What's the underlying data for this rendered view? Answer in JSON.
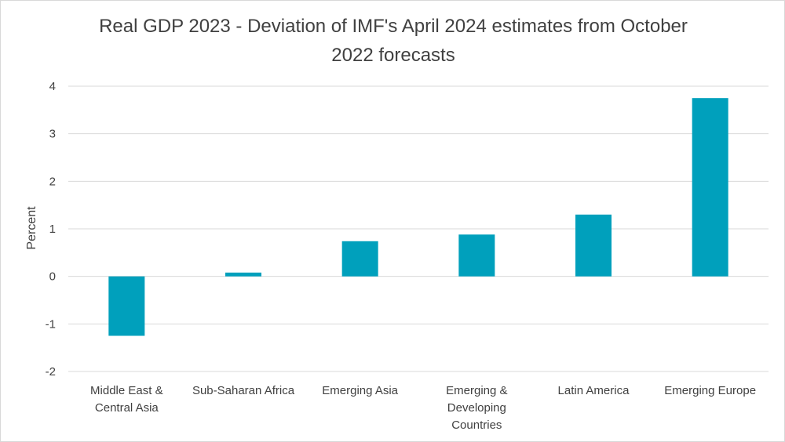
{
  "chart_data": {
    "type": "bar",
    "title_lines": [
      "Real GDP 2023 - Deviation of IMF's April 2024 estimates from October",
      "2022 forecasts"
    ],
    "ylabel": "Percent",
    "ylim": [
      -2,
      4
    ],
    "yticks": [
      "4",
      "3",
      "2",
      "1",
      "0",
      "-1",
      "-2"
    ],
    "ytick_values": [
      4,
      3,
      2,
      1,
      0,
      -1,
      -2
    ],
    "categories": [
      [
        "Middle East &",
        "Central Asia"
      ],
      [
        "Sub-Saharan Africa"
      ],
      [
        "Emerging Asia"
      ],
      [
        "Emerging &",
        "Developing",
        "Countries"
      ],
      [
        "Latin America"
      ],
      [
        "Emerging Europe"
      ]
    ],
    "values": [
      -1.25,
      0.08,
      0.74,
      0.88,
      1.3,
      3.75
    ],
    "bar_color": "#00A0BC",
    "grid_color": "#d9d9d9",
    "grid": true
  }
}
